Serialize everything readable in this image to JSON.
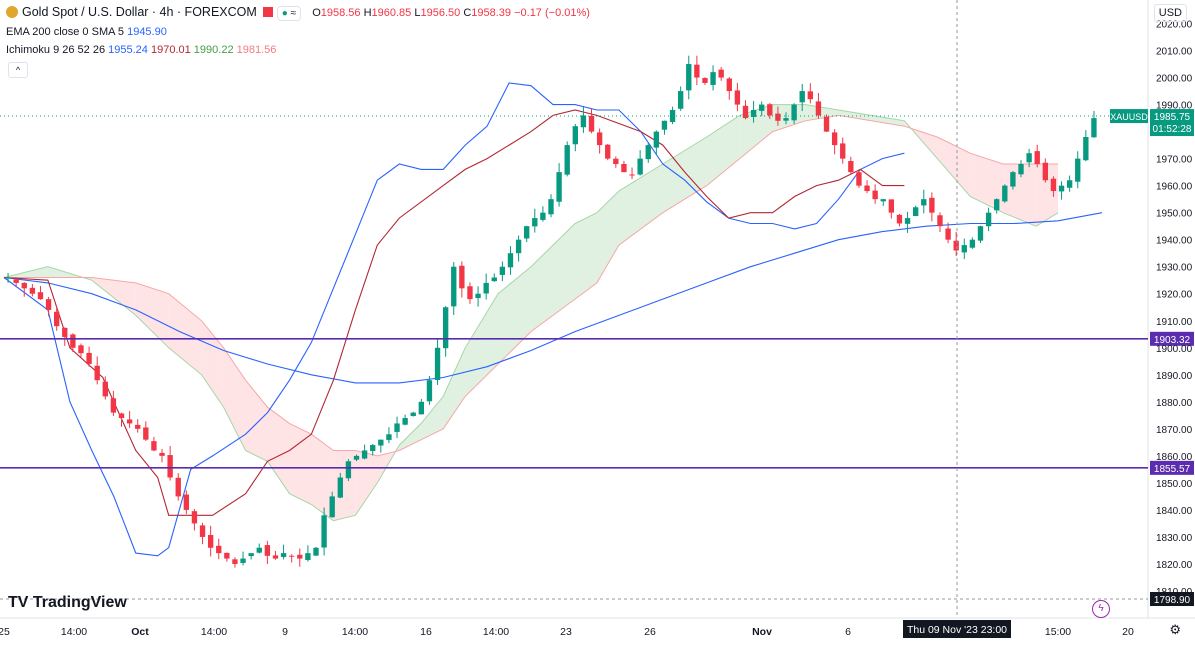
{
  "header": {
    "symbol_title": "Gold Spot / U.S. Dollar · 4h · FOREXCOM",
    "o_label": "O",
    "o_value": "1958.56",
    "h_label": "H",
    "h_value": "1960.85",
    "l_label": "L",
    "l_value": "1956.50",
    "c_label": "C",
    "c_value": "1958.39",
    "change": "−0.17 (−0.01%)",
    "pill_text": "≈"
  },
  "indicators": {
    "ema_label": "EMA 200 close 0 SMA 5",
    "ema_value": "1945.90",
    "ichimoku_label": "Ichimoku 9 26 52 26",
    "ichimoku_values": [
      "1955.24",
      "1970.01",
      "1990.22",
      "1981.56"
    ]
  },
  "axis": {
    "currency": "USD",
    "price_ticks": [
      "2020.00",
      "2010.00",
      "2000.00",
      "1990.00",
      "1970.00",
      "1960.00",
      "1950.00",
      "1940.00",
      "1930.00",
      "1920.00",
      "1910.00",
      "1900.00",
      "1890.00",
      "1880.00",
      "1870.00",
      "1860.00",
      "1850.00",
      "1840.00",
      "1830.00",
      "1820.00",
      "1810.00"
    ],
    "time_ticks": [
      "25",
      "14:00",
      "Oct",
      "14:00",
      "9",
      "14:00",
      "16",
      "14:00",
      "23",
      "26",
      "Nov",
      "6",
      "15:00",
      "20"
    ],
    "crosshair_time": "Thu 09 Nov '23   23:00"
  },
  "price_labels": {
    "symbol": "XAUUSD",
    "last_price": "1985.75",
    "countdown": "01:52:28",
    "level_upper": "1903.32",
    "level_lower": "1855.57",
    "crosshair_price": "1798.90"
  },
  "colors": {
    "up": "#089981",
    "down": "#f23645",
    "ema": "#2962ff",
    "tenkan": "#2962ff",
    "kijun": "#b22833",
    "cloud_bull": "#c8e6c9",
    "cloud_bear": "#ffcdd2",
    "level": "#5b2cae"
  },
  "footer": {
    "brand": "TradingView"
  },
  "chart_data": {
    "type": "candlestick",
    "timeframe": "4h",
    "ylim": [
      1800,
      2025
    ],
    "horizontal_levels": [
      1903.32,
      1855.57
    ],
    "series": [
      {
        "name": "EMA 200",
        "points": [
          [
            0,
            1926
          ],
          [
            8,
            1924
          ],
          [
            16,
            1920
          ],
          [
            24,
            1914
          ],
          [
            32,
            1906
          ],
          [
            40,
            1899
          ],
          [
            48,
            1894
          ],
          [
            56,
            1890
          ],
          [
            64,
            1887
          ],
          [
            72,
            1887
          ],
          [
            80,
            1889
          ],
          [
            88,
            1893
          ],
          [
            96,
            1899
          ],
          [
            104,
            1906
          ],
          [
            112,
            1912
          ],
          [
            120,
            1918
          ],
          [
            128,
            1924
          ],
          [
            136,
            1930
          ],
          [
            144,
            1935
          ],
          [
            152,
            1940
          ],
          [
            160,
            1943
          ],
          [
            168,
            1945
          ],
          [
            176,
            1946
          ],
          [
            184,
            1946
          ],
          [
            192,
            1947
          ],
          [
            200,
            1950
          ]
        ]
      },
      {
        "name": "Ichimoku Tenkan",
        "points": [
          [
            0,
            1926
          ],
          [
            8,
            1914
          ],
          [
            12,
            1880
          ],
          [
            16,
            1862
          ],
          [
            20,
            1845
          ],
          [
            24,
            1824
          ],
          [
            28,
            1823
          ],
          [
            30,
            1826
          ],
          [
            34,
            1855
          ],
          [
            38,
            1860
          ],
          [
            44,
            1868
          ],
          [
            48,
            1876
          ],
          [
            52,
            1888
          ],
          [
            56,
            1902
          ],
          [
            60,
            1922
          ],
          [
            64,
            1942
          ],
          [
            68,
            1962
          ],
          [
            72,
            1968
          ],
          [
            76,
            1966
          ],
          [
            80,
            1966
          ],
          [
            84,
            1975
          ],
          [
            88,
            1982
          ],
          [
            92,
            1998
          ],
          [
            96,
            1997
          ],
          [
            100,
            1990
          ],
          [
            104,
            1990
          ],
          [
            108,
            1988
          ],
          [
            112,
            1988
          ],
          [
            116,
            1980
          ],
          [
            120,
            1968
          ],
          [
            124,
            1962
          ],
          [
            128,
            1954
          ],
          [
            132,
            1948
          ],
          [
            136,
            1946
          ],
          [
            140,
            1946
          ],
          [
            144,
            1944
          ],
          [
            148,
            1946
          ],
          [
            152,
            1955
          ],
          [
            156,
            1966
          ],
          [
            160,
            1970
          ],
          [
            164,
            1972
          ]
        ]
      },
      {
        "name": "Ichimoku Kijun",
        "points": [
          [
            0,
            1926
          ],
          [
            8,
            1925
          ],
          [
            12,
            1900
          ],
          [
            18,
            1889
          ],
          [
            24,
            1862
          ],
          [
            28,
            1852
          ],
          [
            30,
            1838
          ],
          [
            34,
            1838
          ],
          [
            38,
            1838
          ],
          [
            44,
            1846
          ],
          [
            48,
            1858
          ],
          [
            52,
            1862
          ],
          [
            56,
            1868
          ],
          [
            60,
            1888
          ],
          [
            64,
            1914
          ],
          [
            68,
            1938
          ],
          [
            72,
            1948
          ],
          [
            80,
            1960
          ],
          [
            84,
            1966
          ],
          [
            88,
            1970
          ],
          [
            92,
            1975
          ],
          [
            96,
            1980
          ],
          [
            100,
            1986
          ],
          [
            104,
            1988
          ],
          [
            108,
            1986
          ],
          [
            112,
            1983
          ],
          [
            116,
            1980
          ],
          [
            120,
            1975
          ],
          [
            124,
            1965
          ],
          [
            128,
            1956
          ],
          [
            132,
            1948
          ],
          [
            136,
            1950
          ],
          [
            140,
            1950
          ],
          [
            144,
            1956
          ],
          [
            148,
            1960
          ],
          [
            152,
            1962
          ],
          [
            156,
            1966
          ],
          [
            160,
            1960
          ],
          [
            164,
            1960
          ]
        ]
      }
    ],
    "cloud": {
      "span_a": [
        [
          0,
          1926
        ],
        [
          8,
          1930
        ],
        [
          16,
          1925
        ],
        [
          24,
          1912
        ],
        [
          30,
          1900
        ],
        [
          36,
          1890
        ],
        [
          40,
          1878
        ],
        [
          44,
          1862
        ],
        [
          48,
          1858
        ],
        [
          52,
          1846
        ],
        [
          56,
          1842
        ],
        [
          60,
          1836
        ],
        [
          64,
          1838
        ],
        [
          68,
          1850
        ],
        [
          72,
          1864
        ],
        [
          76,
          1872
        ],
        [
          80,
          1882
        ],
        [
          84,
          1900
        ],
        [
          90,
          1920
        ],
        [
          96,
          1930
        ],
        [
          100,
          1938
        ],
        [
          104,
          1946
        ],
        [
          108,
          1950
        ],
        [
          112,
          1958
        ],
        [
          120,
          1968
        ],
        [
          128,
          1978
        ],
        [
          134,
          1986
        ],
        [
          140,
          1990
        ],
        [
          146,
          1990
        ],
        [
          152,
          1988
        ],
        [
          158,
          1986
        ],
        [
          164,
          1984
        ],
        [
          170,
          1970
        ],
        [
          176,
          1956
        ],
        [
          182,
          1950
        ],
        [
          188,
          1945
        ],
        [
          192,
          1950
        ]
      ],
      "span_b": [
        [
          0,
          1926
        ],
        [
          8,
          1926
        ],
        [
          16,
          1926
        ],
        [
          24,
          1924
        ],
        [
          30,
          1920
        ],
        [
          36,
          1910
        ],
        [
          40,
          1900
        ],
        [
          44,
          1888
        ],
        [
          48,
          1878
        ],
        [
          52,
          1872
        ],
        [
          56,
          1868
        ],
        [
          60,
          1862
        ],
        [
          64,
          1862
        ],
        [
          68,
          1860
        ],
        [
          72,
          1862
        ],
        [
          76,
          1866
        ],
        [
          80,
          1870
        ],
        [
          84,
          1882
        ],
        [
          90,
          1894
        ],
        [
          96,
          1906
        ],
        [
          100,
          1912
        ],
        [
          104,
          1918
        ],
        [
          108,
          1924
        ],
        [
          112,
          1938
        ],
        [
          120,
          1950
        ],
        [
          128,
          1960
        ],
        [
          134,
          1970
        ],
        [
          140,
          1980
        ],
        [
          146,
          1984
        ],
        [
          152,
          1986
        ],
        [
          158,
          1984
        ],
        [
          164,
          1982
        ],
        [
          170,
          1978
        ],
        [
          176,
          1972
        ],
        [
          182,
          1968
        ],
        [
          188,
          1968
        ],
        [
          192,
          1968
        ]
      ]
    },
    "candles_close_path": [
      1926,
      1924,
      1922,
      1920,
      1918,
      1914,
      1908,
      1904,
      1900,
      1898,
      1894,
      1888,
      1882,
      1876,
      1874,
      1872,
      1870,
      1866,
      1862,
      1860,
      1852,
      1845,
      1840,
      1835,
      1830,
      1826,
      1824,
      1822,
      1820,
      1822,
      1824,
      1826,
      1823,
      1822,
      1824,
      1823,
      1822,
      1824,
      1826,
      1838,
      1845,
      1852,
      1858,
      1860,
      1862,
      1864,
      1866,
      1868,
      1872,
      1874,
      1876,
      1880,
      1888,
      1900,
      1915,
      1930,
      1922,
      1918,
      1920,
      1924,
      1926,
      1930,
      1935,
      1940,
      1945,
      1948,
      1950,
      1955,
      1965,
      1975,
      1982,
      1986,
      1980,
      1975,
      1970,
      1968,
      1965,
      1964,
      1970,
      1975,
      1980,
      1984,
      1988,
      1995,
      2005,
      2000,
      1998,
      2002,
      2000,
      1995,
      1990,
      1985,
      1988,
      1990,
      1986,
      1984,
      1985,
      1990,
      1995,
      1992,
      1986,
      1980,
      1975,
      1970,
      1965,
      1960,
      1958,
      1955,
      1955,
      1950,
      1946,
      1948,
      1952,
      1955,
      1950,
      1945,
      1940,
      1936,
      1938,
      1940,
      1945,
      1950,
      1955,
      1960,
      1965,
      1968,
      1972,
      1968,
      1962,
      1958,
      1960,
      1962,
      1970,
      1978,
      1985
    ]
  }
}
